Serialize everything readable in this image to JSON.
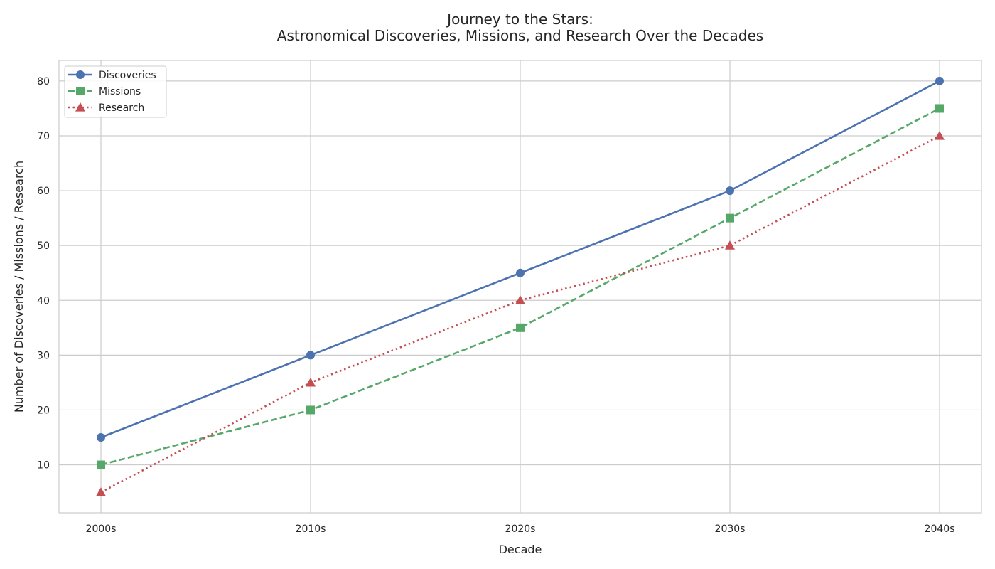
{
  "chart_data": {
    "type": "line",
    "title_line1": "Journey to the Stars:",
    "title_line2": "Astronomical Discoveries, Missions, and Research Over the Decades",
    "xlabel": "Decade",
    "ylabel": "Number of Discoveries / Missions / Research",
    "categories": [
      "2000s",
      "2010s",
      "2020s",
      "2030s",
      "2040s"
    ],
    "ylim": [
      1.25,
      83.75
    ],
    "yticks": [
      10,
      20,
      30,
      40,
      50,
      60,
      70,
      80
    ],
    "grid": true,
    "legend_position": "top-left",
    "series": [
      {
        "name": "Discoveries",
        "values": [
          15,
          30,
          45,
          60,
          80
        ],
        "color": "#4c72b0",
        "marker": "circle",
        "line_style": "solid"
      },
      {
        "name": "Missions",
        "values": [
          10,
          20,
          35,
          55,
          75
        ],
        "color": "#55a868",
        "marker": "square",
        "line_style": "dashed"
      },
      {
        "name": "Research",
        "values": [
          5,
          25,
          40,
          50,
          70
        ],
        "color": "#c44e52",
        "marker": "triangle",
        "line_style": "dotted"
      }
    ]
  }
}
